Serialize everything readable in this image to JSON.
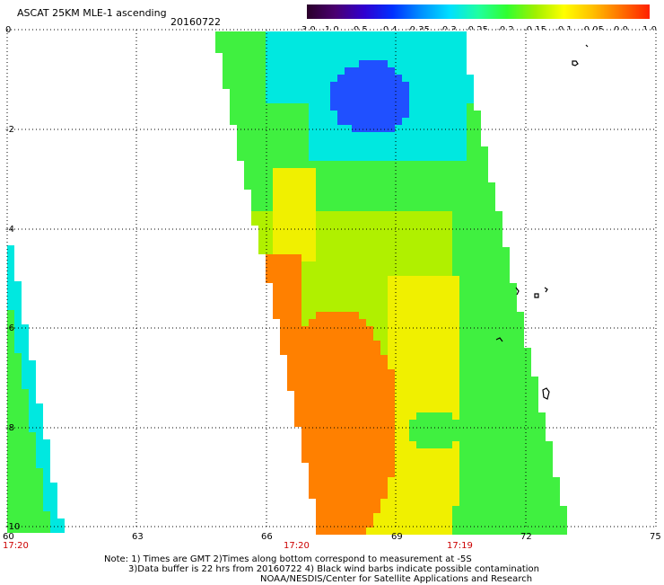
{
  "header": {
    "title": "ASCAT 25KM MLE-1 ascending",
    "date": "20160722"
  },
  "colorbar": {
    "labels": [
      "-3.0",
      "-1.0",
      "-0.5",
      "-0.4",
      "-0.35",
      "-0.3",
      "-0.25",
      "-0.2",
      "-0.15",
      "-0.1",
      "-0.05",
      "0.0",
      "1.0"
    ],
    "colors": [
      "#2a002a",
      "#4a0070",
      "#3000d0",
      "#0030ff",
      "#0090ff",
      "#00e0ff",
      "#20ffa0",
      "#30ff30",
      "#a0f000",
      "#ffff00",
      "#ffc000",
      "#ff7000",
      "#ff2000"
    ]
  },
  "axes": {
    "lat_labels": [
      "0",
      "-2",
      "-4",
      "-6",
      "-8",
      "-10"
    ],
    "lon_labels": [
      "60",
      "63",
      "66",
      "69",
      "72",
      "75"
    ]
  },
  "times": {
    "left": "17:20",
    "center": "17:20",
    "right": "17:19",
    "color": "#cc0000"
  },
  "footer": {
    "line1": "Note: 1) Times are GMT 2)Times along bottom correspond to measurement at -5S",
    "line2": "3)Data buffer is 22 hrs from 20160722 4) Black wind barbs indicate possible contamination",
    "line3": "NOAA/NESDIS/Center for Satellite Applications and Research"
  },
  "palette": {
    "blue": "#2050ff",
    "cyan": "#00e8e0",
    "green": "#40f040",
    "yellowgreen": "#b0f000",
    "yellow": "#f0f000",
    "orange": "#ff8000"
  }
}
